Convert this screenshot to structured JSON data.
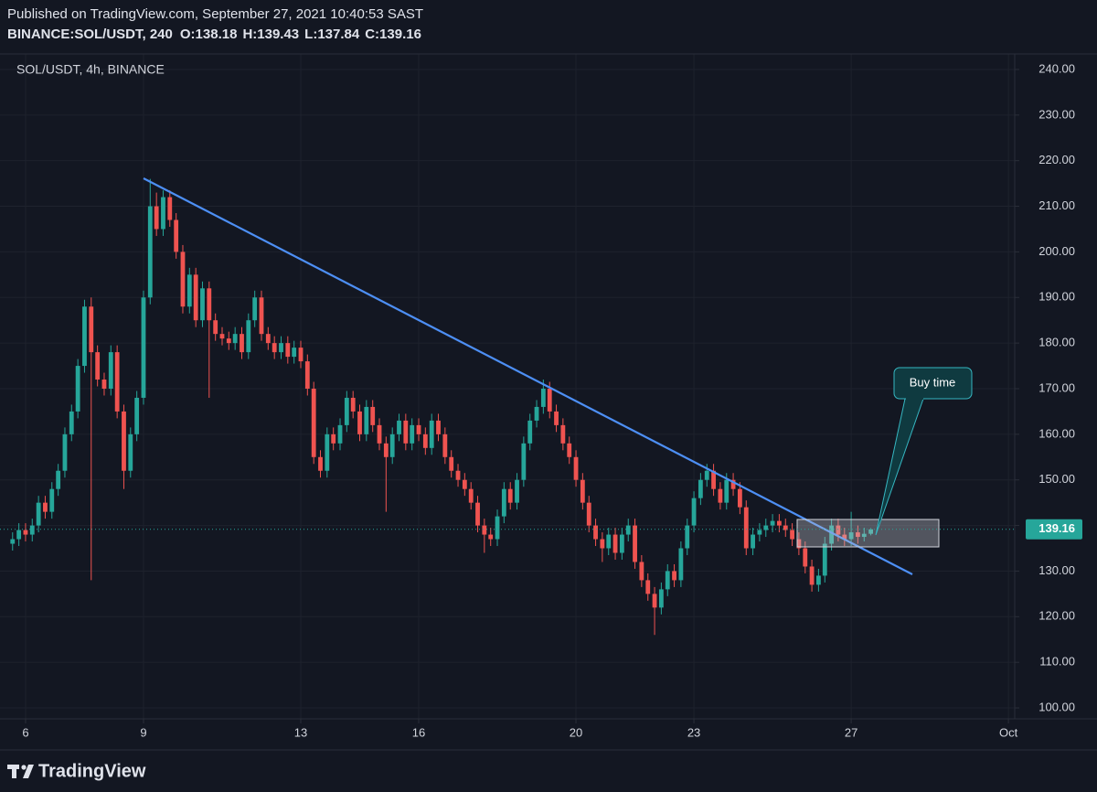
{
  "header": {
    "published": "Published on TradingView.com, September 27, 2021 10:40:53 SAST",
    "symbol": "BINANCE:SOL/USDT, 240",
    "ohlc_labels": [
      "O:",
      "H:",
      "L:",
      "C:"
    ]
  },
  "chart_data": {
    "type": "candlestick",
    "title": "SOL/USDT, 4h, BINANCE",
    "x": [
      5.67,
      5.83,
      6,
      6.17,
      6.33,
      6.5,
      6.67,
      6.83,
      7,
      7.17,
      7.33,
      7.5,
      7.67,
      7.83,
      8,
      8.17,
      8.33,
      8.5,
      8.67,
      8.83,
      9,
      9.17,
      9.33,
      9.5,
      9.67,
      9.83,
      10,
      10.17,
      10.33,
      10.5,
      10.67,
      10.83,
      11,
      11.17,
      11.33,
      11.5,
      11.67,
      11.83,
      12,
      12.17,
      12.33,
      12.5,
      12.67,
      12.83,
      13,
      13.17,
      13.33,
      13.5,
      13.67,
      13.83,
      14,
      14.17,
      14.33,
      14.5,
      14.67,
      14.83,
      15,
      15.17,
      15.33,
      15.5,
      15.67,
      15.83,
      16,
      16.17,
      16.33,
      16.5,
      16.67,
      16.83,
      17,
      17.17,
      17.33,
      17.5,
      17.67,
      17.83,
      18,
      18.17,
      18.33,
      18.5,
      18.67,
      18.83,
      19,
      19.17,
      19.33,
      19.5,
      19.67,
      19.83,
      20,
      20.17,
      20.33,
      20.5,
      20.67,
      20.83,
      21,
      21.17,
      21.33,
      21.5,
      21.67,
      21.83,
      22,
      22.17,
      22.33,
      22.5,
      22.67,
      22.83,
      23,
      23.17,
      23.33,
      23.5,
      23.67,
      23.83,
      24,
      24.17,
      24.33,
      24.5,
      24.67,
      24.83,
      25,
      25.17,
      25.33,
      25.5,
      25.67,
      25.83,
      26,
      26.17,
      26.33,
      26.5,
      26.67,
      26.83,
      27,
      27.17,
      27.33,
      27.5
    ],
    "open": [
      136,
      137,
      139,
      138,
      140,
      145,
      143,
      148,
      152,
      160,
      165,
      175,
      188,
      178,
      172,
      170,
      178,
      165,
      152,
      160,
      168,
      190,
      210,
      205,
      212,
      207,
      200,
      188,
      195,
      185,
      192,
      185,
      182,
      181,
      180,
      182,
      178,
      185,
      190,
      182,
      180,
      178,
      180,
      177,
      179,
      176,
      170,
      155,
      152,
      160,
      158,
      162,
      168,
      165,
      160,
      166,
      162,
      158,
      155,
      160,
      163,
      158,
      162,
      160,
      157,
      163,
      160,
      155,
      152,
      150,
      148,
      145,
      140,
      138,
      137,
      142,
      148,
      145,
      150,
      158,
      163,
      166,
      170,
      165,
      162,
      158,
      155,
      150,
      145,
      140,
      137,
      135,
      138,
      134,
      138,
      140,
      132,
      128,
      125,
      122,
      126,
      130,
      128,
      135,
      140,
      146,
      150,
      152,
      148,
      145,
      150,
      148,
      144,
      135,
      138,
      139,
      140,
      141,
      140,
      139,
      137,
      135,
      131,
      127,
      129,
      136,
      140,
      138,
      137,
      138.5,
      137.5,
      138.18
    ],
    "high": [
      138.5,
      140.5,
      140.5,
      141.5,
      146.5,
      146.5,
      149.5,
      153.5,
      161.5,
      166.5,
      176.5,
      189.5,
      190,
      179.5,
      173.5,
      179.5,
      179.5,
      166.5,
      161.5,
      169.5,
      191.5,
      216,
      213,
      213.5,
      213.5,
      208.5,
      201.5,
      196.5,
      196.5,
      193.5,
      193.5,
      186.5,
      183.5,
      182.5,
      183.5,
      183.5,
      186.5,
      191.5,
      191.5,
      183.5,
      181.5,
      181.5,
      181.5,
      180.5,
      180.5,
      177.5,
      171.5,
      156.5,
      161.5,
      161.5,
      163.5,
      169.5,
      169.5,
      166.5,
      167.5,
      167.5,
      163.5,
      159.5,
      161.5,
      164.5,
      164.5,
      163.5,
      163.5,
      161.5,
      164.5,
      164.5,
      161.5,
      156.5,
      153.5,
      151.5,
      149.5,
      146.5,
      141.5,
      139.5,
      143.5,
      149.5,
      149.5,
      151.5,
      159.5,
      164.5,
      167.5,
      172,
      171.5,
      166.5,
      163.5,
      159.5,
      156.5,
      151.5,
      146.5,
      141.5,
      138.5,
      139.5,
      139.5,
      139.5,
      141.5,
      141.5,
      133.5,
      129.5,
      126.5,
      127.5,
      131.5,
      131.5,
      136.5,
      141.5,
      147.5,
      151.5,
      153.5,
      153.5,
      149.5,
      151.5,
      151.5,
      149.5,
      145.5,
      139.5,
      140.5,
      141.5,
      142.5,
      142.5,
      141.5,
      140.5,
      138.5,
      136.5,
      132.5,
      130.5,
      137.5,
      141.5,
      141.5,
      139.5,
      143,
      140,
      139.5,
      139.43
    ],
    "low": [
      134.5,
      135.5,
      136.5,
      136.5,
      138.5,
      141.5,
      141.5,
      146.5,
      150.5,
      158.5,
      163.5,
      173.5,
      128,
      170.5,
      168.5,
      168.5,
      163.5,
      148,
      150.5,
      158.5,
      166.5,
      188.5,
      203.5,
      203.5,
      205.5,
      198.5,
      186.5,
      186.5,
      183.5,
      183.5,
      168,
      180.5,
      179.5,
      178.5,
      178.5,
      176.5,
      176.5,
      183.5,
      180.5,
      178.5,
      176.5,
      176.5,
      175.5,
      175.5,
      174.5,
      168.5,
      153.5,
      150.5,
      150.5,
      156.5,
      156.5,
      160.5,
      163.5,
      158.5,
      158.5,
      160.5,
      156.5,
      143,
      153.5,
      158.5,
      156.5,
      156.5,
      158.5,
      155.5,
      155.5,
      158.5,
      153.5,
      150.5,
      148.5,
      146.5,
      143.5,
      138.5,
      134,
      135.5,
      135.5,
      140.5,
      143.5,
      143.5,
      148.5,
      156.5,
      161.5,
      164.5,
      163.5,
      160.5,
      156.5,
      153.5,
      148.5,
      143.5,
      138.5,
      135.5,
      132,
      133.5,
      132.5,
      132.5,
      136.5,
      130.5,
      126.5,
      123.5,
      116,
      120.5,
      124.5,
      126.5,
      126.5,
      133.5,
      138.5,
      144.5,
      148.5,
      146.5,
      143.5,
      143.5,
      146.5,
      142.5,
      133.5,
      133.5,
      136.5,
      137.5,
      138.5,
      138.5,
      137.5,
      135.5,
      133.5,
      129.5,
      125.5,
      125.5,
      127.5,
      134.5,
      136.5,
      135.5,
      135.5,
      136,
      136.5,
      137.84
    ],
    "close": [
      137,
      139,
      138,
      140,
      145,
      143,
      148,
      152,
      160,
      165,
      175,
      188,
      178,
      172,
      170,
      178,
      165,
      152,
      160,
      168,
      190,
      210,
      205,
      212,
      207,
      200,
      188,
      195,
      185,
      192,
      185,
      182,
      181,
      180,
      182,
      178,
      185,
      190,
      182,
      180,
      178,
      180,
      177,
      179,
      176,
      170,
      155,
      152,
      160,
      158,
      162,
      168,
      165,
      160,
      166,
      162,
      158,
      155,
      160,
      163,
      158,
      162,
      160,
      157,
      163,
      160,
      155,
      152,
      150,
      148,
      145,
      140,
      138,
      137,
      142,
      148,
      145,
      150,
      158,
      163,
      166,
      170,
      165,
      162,
      158,
      155,
      150,
      145,
      140,
      137,
      135,
      138,
      134,
      138,
      140,
      132,
      128,
      125,
      122,
      126,
      130,
      128,
      135,
      140,
      146,
      150,
      152,
      148,
      145,
      150,
      148,
      144,
      135,
      138,
      139,
      140,
      141,
      140,
      139,
      137,
      135,
      131,
      127,
      129,
      136,
      140,
      138,
      137,
      138.5,
      137.5,
      138.18,
      139.16
    ],
    "up_color": "#26a69a",
    "down_color": "#ef5350",
    "xlim": [
      5.35,
      31.16
    ],
    "xticks": [
      6,
      9,
      13,
      16,
      20,
      23,
      27,
      {
        "value": 31,
        "label": "Oct"
      }
    ],
    "ylim": [
      97.6,
      243.4
    ],
    "yticks": [
      {
        "value": 100,
        "label": "100.00"
      },
      {
        "value": 110,
        "label": "110.00"
      },
      {
        "value": 120,
        "label": "120.00"
      },
      {
        "value": 130,
        "label": "130.00"
      },
      {
        "value": 140,
        "label": "140.00"
      },
      {
        "value": 150,
        "label": "150.00"
      },
      {
        "value": 160,
        "label": "160.00"
      },
      {
        "value": 170,
        "label": "170.00"
      },
      {
        "value": 180,
        "label": "180.00"
      },
      {
        "value": 190,
        "label": "190.00"
      },
      {
        "value": 200,
        "label": "200.00"
      },
      {
        "value": 210,
        "label": "210.00"
      },
      {
        "value": 220,
        "label": "220.00"
      },
      {
        "value": 230,
        "label": "230.00"
      },
      {
        "value": 240,
        "label": "240.00"
      }
    ],
    "grid": true,
    "annotation": "Buy time"
  },
  "footer": {
    "brand": "TradingView"
  }
}
